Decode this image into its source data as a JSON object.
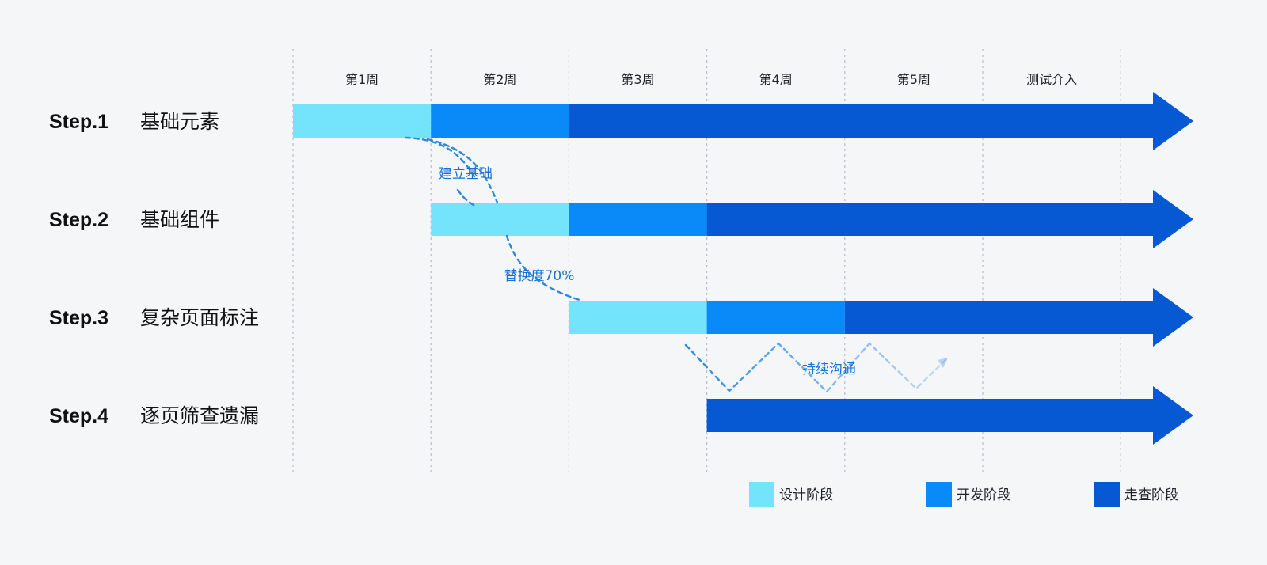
{
  "weeks": [
    "第1周",
    "第2周",
    "第3周",
    "第4周",
    "第5周",
    "测试介入"
  ],
  "steps": [
    {
      "num": "Step.1",
      "name": "基础元素",
      "segments": [
        {
          "phase": "design",
          "start": 0,
          "end": 1
        },
        {
          "phase": "dev",
          "start": 1,
          "end": 2
        },
        {
          "phase": "review",
          "start": 2,
          "end": 6.6
        }
      ]
    },
    {
      "num": "Step.2",
      "name": "基础组件",
      "segments": [
        {
          "phase": "design",
          "start": 1,
          "end": 2
        },
        {
          "phase": "dev",
          "start": 2,
          "end": 3
        },
        {
          "phase": "review",
          "start": 3,
          "end": 6.6
        }
      ]
    },
    {
      "num": "Step.3",
      "name": "复杂页面标注",
      "segments": [
        {
          "phase": "design",
          "start": 2,
          "end": 3
        },
        {
          "phase": "dev",
          "start": 3,
          "end": 4
        },
        {
          "phase": "review",
          "start": 4,
          "end": 6.6
        }
      ]
    },
    {
      "num": "Step.4",
      "name": "逐页筛查遗漏",
      "segments": [
        {
          "phase": "review",
          "start": 3,
          "end": 6.6
        }
      ]
    }
  ],
  "notes": {
    "foundation": "建立基础",
    "replace": "替换度70%",
    "communicate": "持续沟通"
  },
  "legend": [
    {
      "phase": "design",
      "label": "设计阶段"
    },
    {
      "phase": "dev",
      "label": "开发阶段"
    },
    {
      "phase": "review",
      "label": "走查阶段"
    }
  ],
  "colors": {
    "design": "#74e3fc",
    "dev": "#0a8af8",
    "review": "#0659d3",
    "grid": "#b8bcc4",
    "note": "#1a6fd6",
    "dashed": "#2b88e0"
  }
}
